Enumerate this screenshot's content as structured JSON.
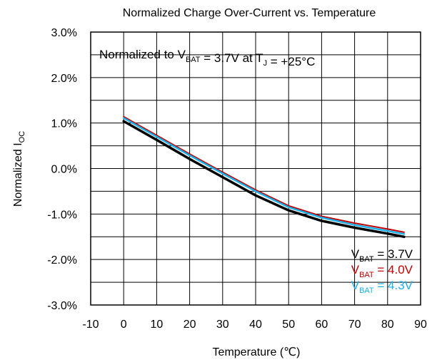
{
  "chart_data": {
    "type": "line",
    "title": "Normalized Charge Over-Current vs. Temperature",
    "xlabel": "Temperature (℃)",
    "ylabel": {
      "main": "Normalized I",
      "sub": "OC"
    },
    "annotation": {
      "parts": [
        {
          "text": "Normalized to V",
          "sub": "BAT"
        },
        {
          "text": " = 3.7V at T",
          "sub": "J"
        },
        {
          "text": " = +25°C",
          "sub": ""
        }
      ]
    },
    "xlim": [
      -10,
      90
    ],
    "ylim": [
      -3.0,
      3.0
    ],
    "x_ticks": [
      -10,
      0,
      10,
      20,
      30,
      40,
      50,
      60,
      70,
      80,
      90
    ],
    "x_tick_labels": [
      "-10",
      "0",
      "10",
      "20",
      "30",
      "40",
      "50",
      "60",
      "70",
      "80",
      "90"
    ],
    "y_ticks": [
      -3.0,
      -2.0,
      -1.0,
      0.0,
      1.0,
      2.0,
      3.0
    ],
    "y_tick_labels": [
      "-3.0%",
      "-2.0%",
      "-1.0%",
      "0.0%",
      "1.0%",
      "2.0%",
      "3.0%"
    ],
    "x_minor_step": 10,
    "y_minor_step": 0.5,
    "grid": true,
    "legend_position": "bottom-right",
    "x": [
      0,
      10,
      20,
      30,
      40,
      50,
      60,
      70,
      80,
      85
    ],
    "series": [
      {
        "name": "V",
        "name_sub": "BAT",
        "name_suffix": " = 4.0V",
        "color": "#c00000",
        "width": 2,
        "values": [
          1.14,
          0.73,
          0.32,
          -0.08,
          -0.47,
          -0.82,
          -1.05,
          -1.2,
          -1.33,
          -1.4
        ]
      },
      {
        "name": "V",
        "name_sub": "BAT",
        "name_suffix": " = 4.3V",
        "color": "#1cb0e8",
        "width": 2.5,
        "values": [
          1.11,
          0.7,
          0.29,
          -0.11,
          -0.5,
          -0.85,
          -1.08,
          -1.24,
          -1.37,
          -1.44
        ]
      },
      {
        "name": "V",
        "name_sub": "BAT",
        "name_suffix": " = 3.7V",
        "color": "#000000",
        "width": 3.5,
        "values": [
          1.04,
          0.63,
          0.21,
          -0.19,
          -0.59,
          -0.92,
          -1.15,
          -1.3,
          -1.43,
          -1.5
        ]
      }
    ],
    "legend_order": [
      2,
      0,
      1
    ]
  }
}
